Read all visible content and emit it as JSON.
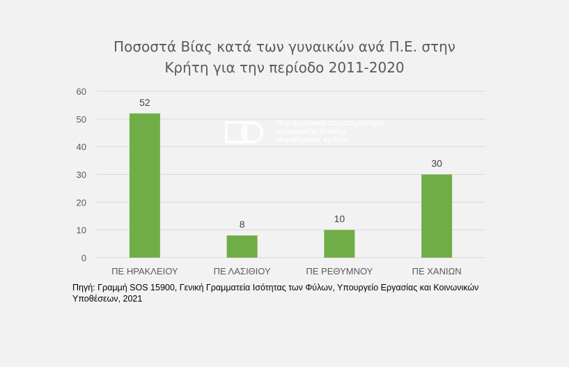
{
  "chart_data": {
    "type": "bar",
    "title_lines": [
      "Ποσοστά Βίας κατά των γυναικών ανά Π.Ε. στην",
      "Κρήτη για την περίοδο 2011-2020"
    ],
    "categories": [
      "ΠΕ ΗΡΑΚΛΕΙΟΥ",
      "ΠΕ ΛΑΣΙΘΙΟΥ",
      "ΠΕ ΡΕΘΥΜΝΟΥ",
      "ΠΕ ΧΑΝΙΩΝ"
    ],
    "values": [
      52,
      8,
      10,
      30
    ],
    "data_labels": [
      "52",
      "8",
      "10",
      "30"
    ],
    "y_ticks": [
      "0",
      "10",
      "20",
      "30",
      "40",
      "50",
      "60"
    ],
    "ylim": [
      0,
      60
    ],
    "grid": true,
    "legend": "none",
    "bar_color": "#70ad47",
    "grid_color": "#d9d9d9"
  },
  "watermark": {
    "lines": [
      "περιφερειακό παρατηρητήριο",
      "κοινωνικής ένταξης",
      "περιφέρειας κρήτης"
    ]
  },
  "source": "Πηγή: Γραμμή SOS 15900, Γενική Γραμματεία Ισότητας των Φύλων, Υπουργείο Εργασίας και Κοινωνικών Υποθέσεων, 2021"
}
